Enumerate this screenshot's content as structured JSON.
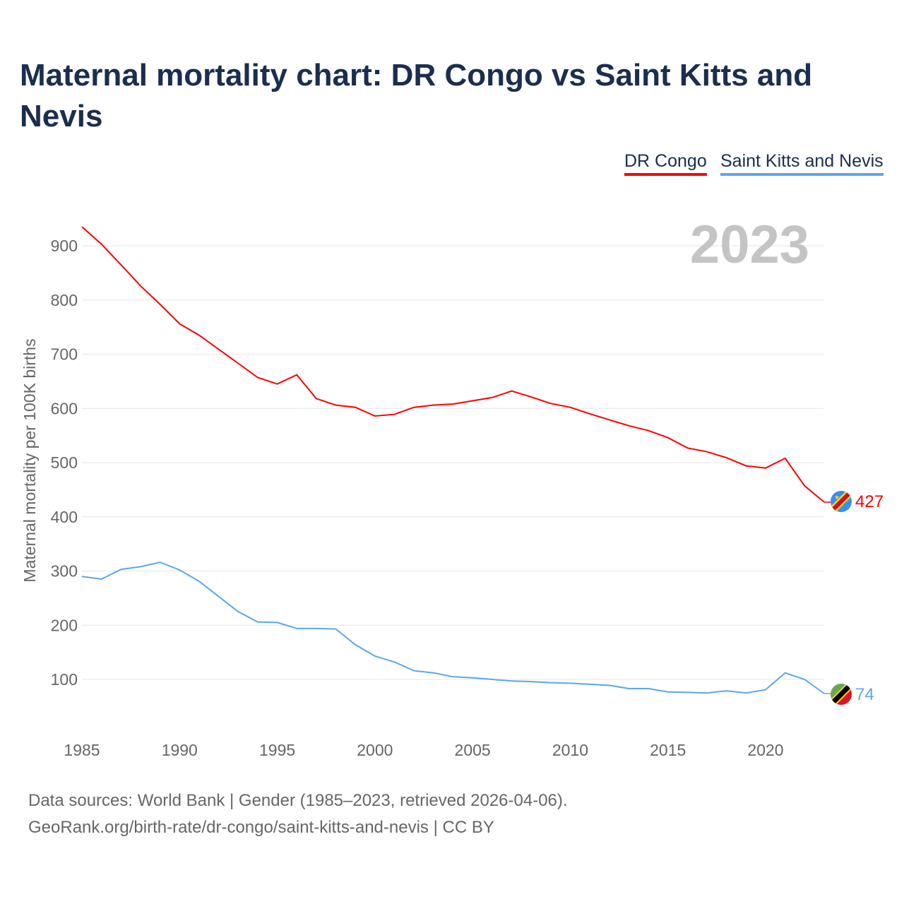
{
  "chart_data": {
    "type": "line",
    "title": "Maternal mortality chart: DR Congo vs Saint Kitts and Nevis",
    "xlabel": "",
    "ylabel": "Maternal mortality per 100K births",
    "ylim": [
      0,
      950
    ],
    "xlim": [
      1985,
      2023
    ],
    "yticks": [
      100,
      200,
      300,
      400,
      500,
      600,
      700,
      800,
      900
    ],
    "xticks": [
      1985,
      1990,
      1995,
      2000,
      2005,
      2010,
      2015,
      2020
    ],
    "grid": true,
    "legend_placement": "top-right",
    "year_label": "2023",
    "x": [
      1985,
      1986,
      1987,
      1988,
      1989,
      1990,
      1991,
      1992,
      1993,
      1994,
      1995,
      1996,
      1997,
      1998,
      1999,
      2000,
      2001,
      2002,
      2003,
      2004,
      2005,
      2006,
      2007,
      2008,
      2009,
      2010,
      2011,
      2012,
      2013,
      2014,
      2015,
      2016,
      2017,
      2018,
      2019,
      2020,
      2021,
      2022,
      2023
    ],
    "series": [
      {
        "name": "DR Congo",
        "color": "#ff0000",
        "end_label": "427",
        "values": [
          935,
          903,
          865,
          826,
          792,
          756,
          735,
          709,
          683,
          657,
          645,
          662,
          618,
          606,
          602,
          586,
          589,
          602,
          606,
          608,
          614,
          620,
          632,
          621,
          609,
          602,
          590,
          579,
          568,
          559,
          546,
          527,
          520,
          509,
          494,
          490,
          508,
          457,
          427
        ]
      },
      {
        "name": "Saint Kitts and Nevis",
        "color": "#5ba7ec",
        "end_label": "74",
        "values": [
          290,
          285,
          303,
          308,
          316,
          302,
          281,
          253,
          225,
          206,
          205,
          194,
          194,
          193,
          164,
          143,
          132,
          116,
          112,
          105,
          103,
          100,
          97,
          96,
          94,
          93,
          91,
          89,
          83,
          83,
          77,
          76,
          75,
          79,
          75,
          81,
          112,
          100,
          74
        ]
      }
    ]
  },
  "footer": {
    "line1": "Data sources: World Bank | Gender (1985–2023, retrieved 2026-04-06).",
    "line2": "GeoRank.org/birth-rate/dr-congo/saint-kitts-and-nevis | CC BY"
  }
}
